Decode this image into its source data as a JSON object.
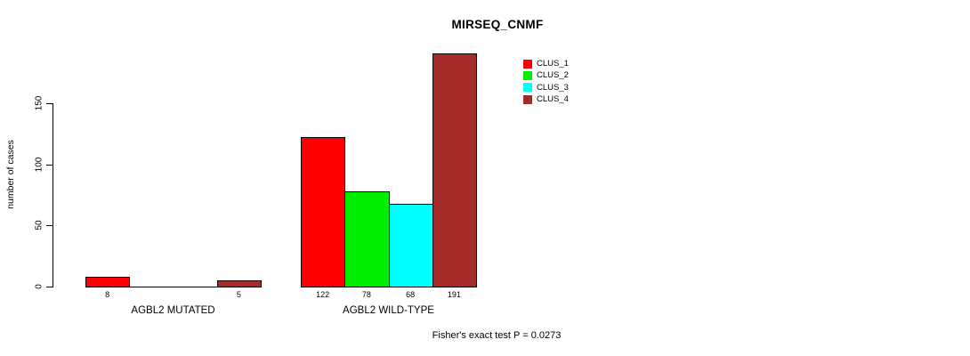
{
  "chart_data": {
    "type": "bar",
    "title": "MIRSEQ_CNMF",
    "ylabel": "number of cases",
    "ylim": [
      0,
      150
    ],
    "yticks": [
      0,
      50,
      100,
      150
    ],
    "grid": false,
    "legend_position": "top-right",
    "groups": [
      "AGBL2 MUTATED",
      "AGBL2 WILD-TYPE"
    ],
    "series": [
      {
        "name": "CLUS_1",
        "color": "#ff0000",
        "values": [
          8,
          122
        ]
      },
      {
        "name": "CLUS_2",
        "color": "#00ee00",
        "values": [
          0,
          78
        ]
      },
      {
        "name": "CLUS_3",
        "color": "#00ffff",
        "values": [
          0,
          68
        ]
      },
      {
        "name": "CLUS_4",
        "color": "#a52a2a",
        "values": [
          5,
          191
        ]
      }
    ],
    "bar_value_labels_shown_only_when_nonzero": true,
    "footnote": "Fisher's exact test P = 0.0273"
  }
}
